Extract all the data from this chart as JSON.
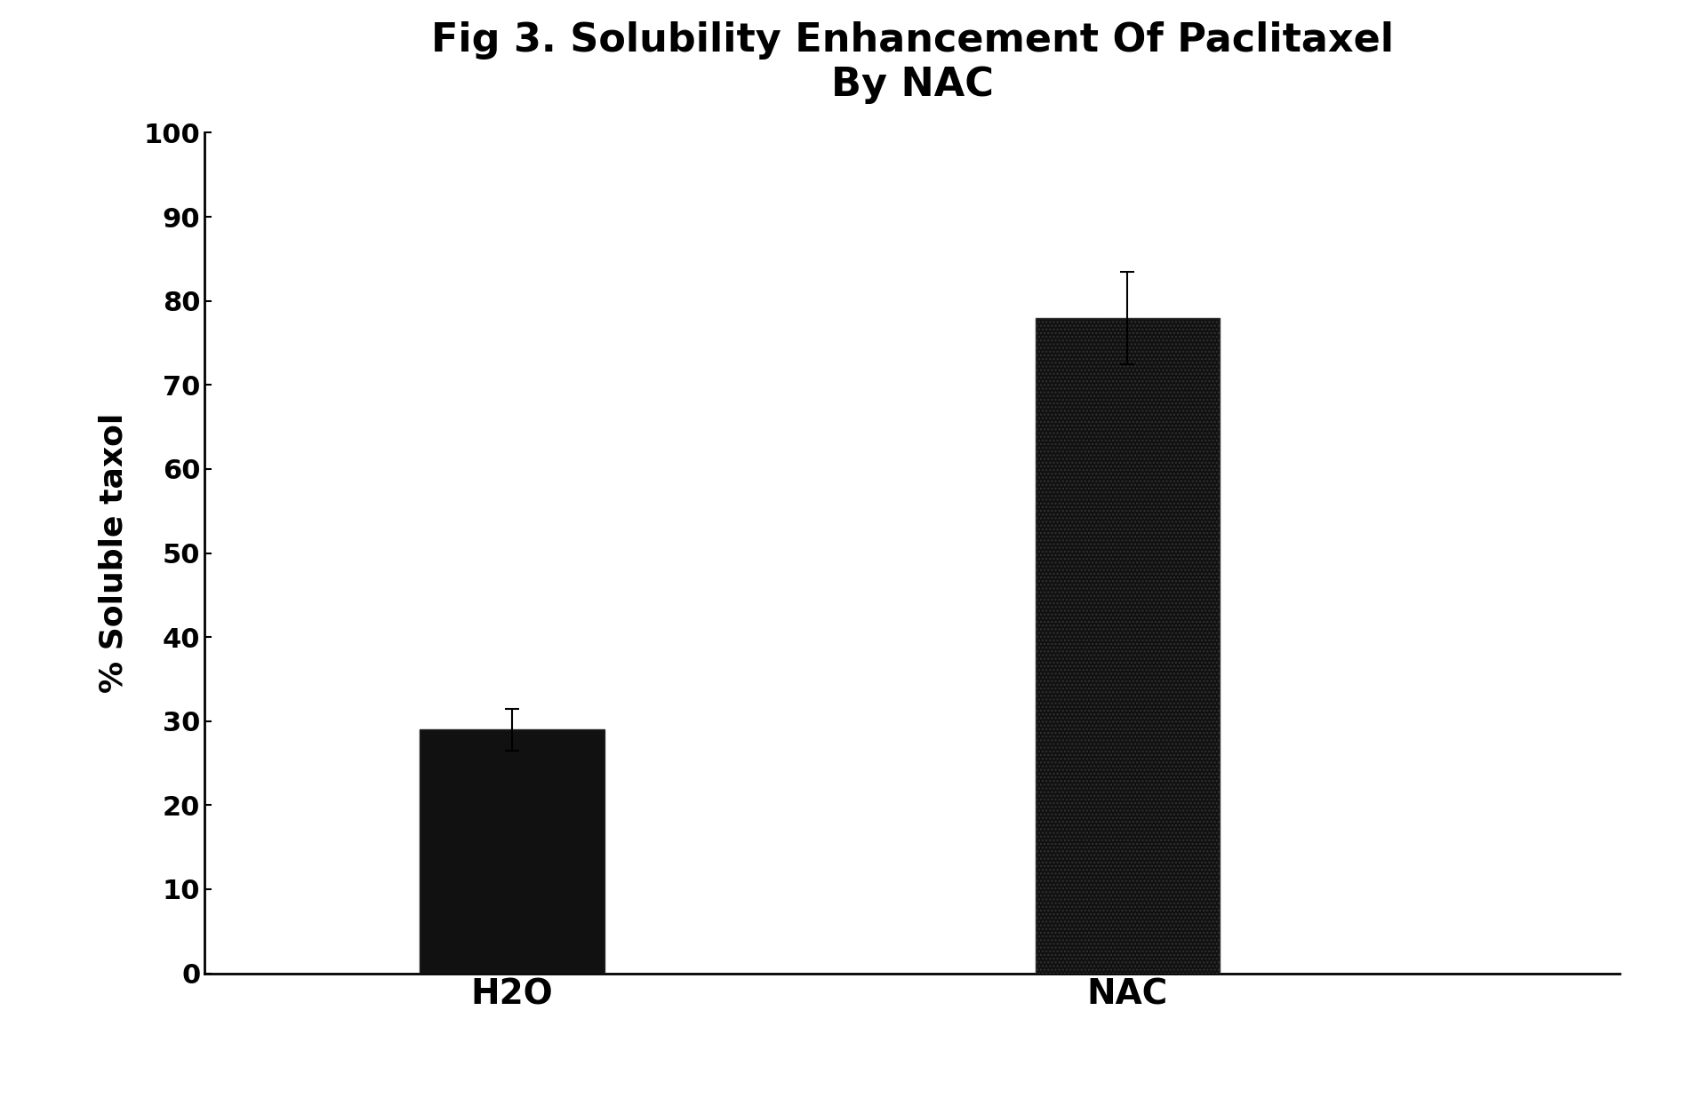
{
  "title_line1": "Fig 3. Solubility Enhancement Of Paclitaxel",
  "title_line2": "By NAC",
  "categories": [
    "H2O",
    "NAC"
  ],
  "values": [
    29.0,
    78.0
  ],
  "errors": [
    2.5,
    5.5
  ],
  "ylabel": "% Soluble taxol",
  "ylim": [
    0,
    100
  ],
  "yticks": [
    0,
    10,
    20,
    30,
    40,
    50,
    60,
    70,
    80,
    90,
    100
  ],
  "bar_color": "#111111",
  "bar_width": 0.3,
  "background_color": "#ffffff",
  "title_fontsize": 32,
  "axis_label_fontsize": 26,
  "tick_fontsize": 22,
  "xtick_fontsize": 28
}
